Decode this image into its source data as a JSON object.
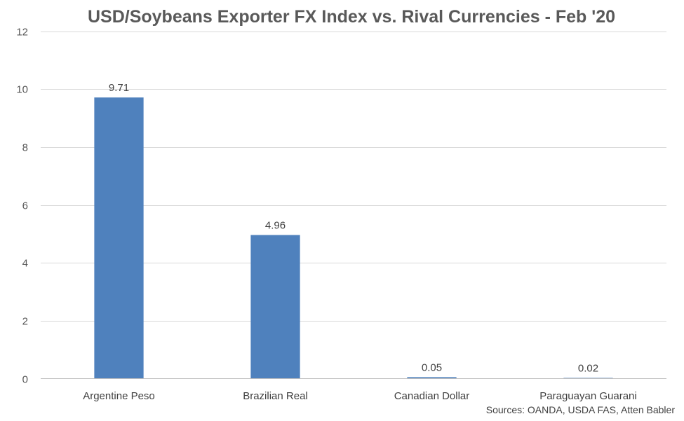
{
  "chart_data": {
    "type": "bar",
    "title": "USD/Soybeans Exporter FX Index vs. Rival Currencies - Feb '20",
    "categories": [
      "Argentine Peso",
      "Brazilian Real",
      "Canadian Dollar",
      "Paraguayan Guarani"
    ],
    "values": [
      9.71,
      4.96,
      0.05,
      0.02
    ],
    "data_labels": [
      "9.71",
      "4.96",
      "0.05",
      "0.02"
    ],
    "ylim": [
      0,
      12
    ],
    "yticks": [
      0,
      2,
      4,
      6,
      8,
      10,
      12
    ],
    "grid": true,
    "legend": "none",
    "bar_color": "#4F81BD",
    "source": "Sources: OANDA, USDA FAS, Atten Babler"
  }
}
